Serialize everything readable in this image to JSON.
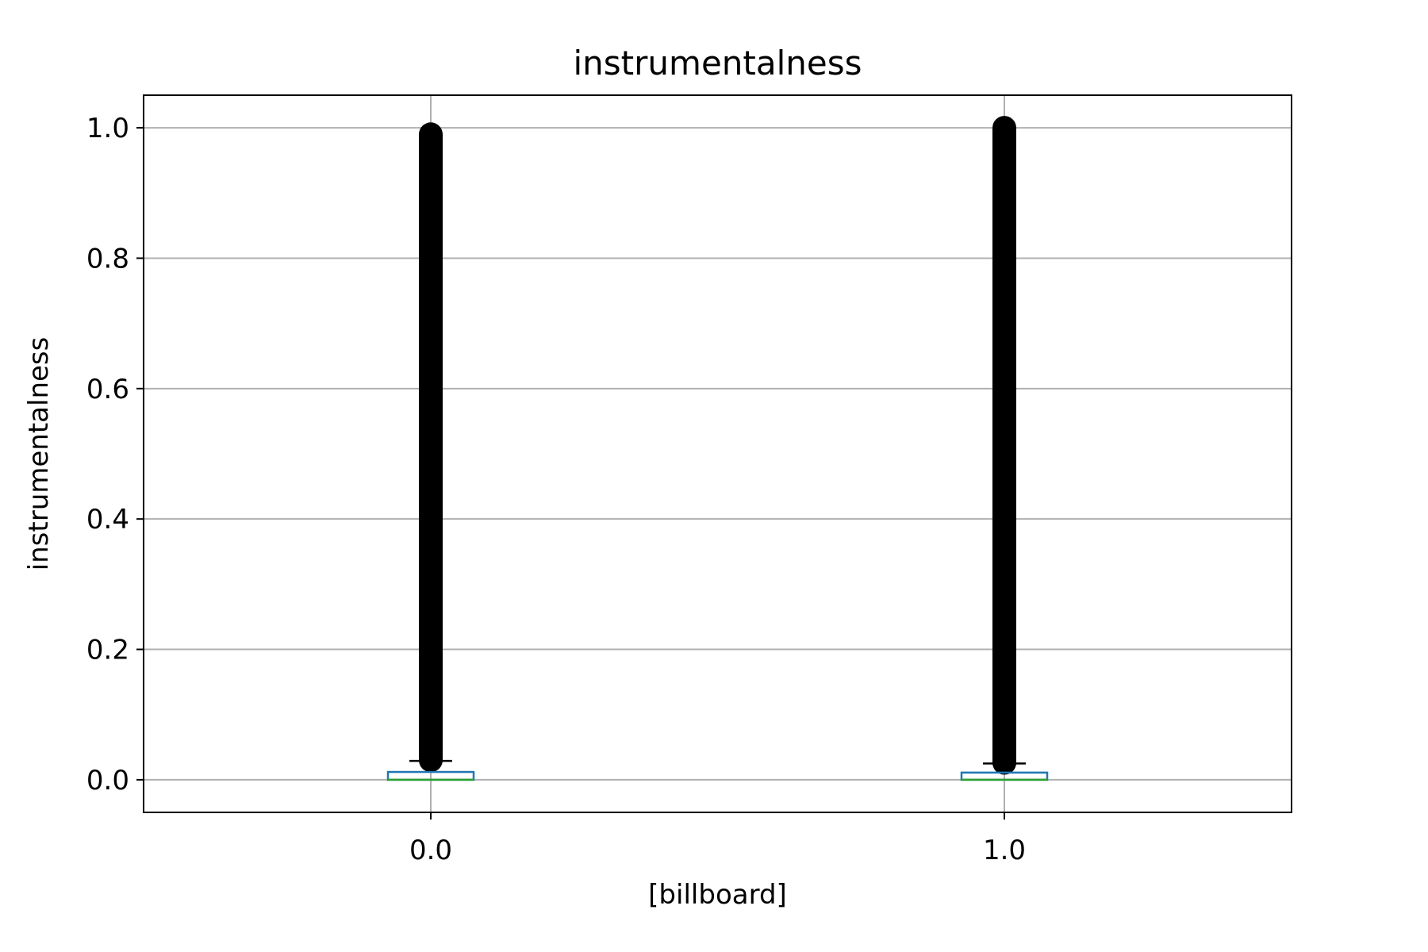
{
  "chart_data": {
    "type": "box",
    "title": "instrumentalness",
    "xlabel": "[billboard]",
    "ylabel": "instrumentalness",
    "ylim": [
      -0.05,
      1.05
    ],
    "yticks": [
      0.0,
      0.2,
      0.4,
      0.6,
      0.8,
      1.0
    ],
    "ytick_labels": [
      "0.0",
      "0.2",
      "0.4",
      "0.6",
      "0.8",
      "1.0"
    ],
    "grid": true,
    "categories": [
      "0.0",
      "1.0"
    ],
    "boxes": [
      {
        "category": "0.0",
        "q1": 0.0,
        "median": 0.0,
        "q3": 0.012,
        "whisker_low": 0.0,
        "whisker_high": 0.029,
        "outliers_min": 0.03,
        "outliers_max": 0.99
      },
      {
        "category": "1.0",
        "q1": 0.0,
        "median": 0.0,
        "q3": 0.011,
        "whisker_low": 0.0,
        "whisker_high": 0.025,
        "outliers_min": 0.026,
        "outliers_max": 1.0
      }
    ],
    "colors": {
      "box": "#1f77b4",
      "median": "#2ca02c",
      "whisker": "#000000",
      "outlier": "#000000",
      "grid": "#b0b0b0"
    }
  }
}
